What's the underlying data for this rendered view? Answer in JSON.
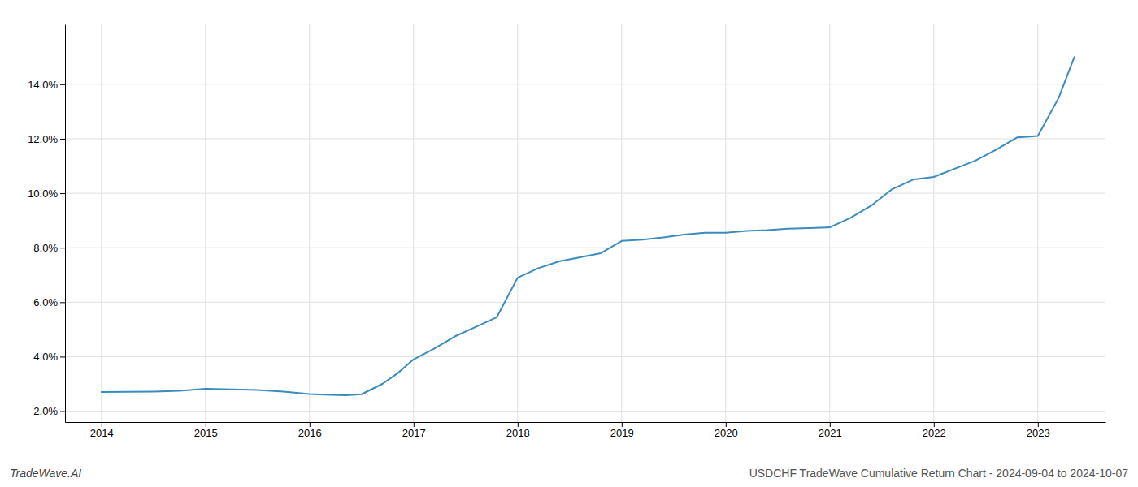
{
  "chart_data": {
    "type": "line",
    "title": "USDCHF TradeWave Cumulative Return Chart - 2024-09-04 to 2024-10-07",
    "annotations": [
      "TradeWave.AI"
    ],
    "color": "#3a8cbf",
    "x": [
      2014.0,
      2014.25,
      2014.5,
      2014.75,
      2015.0,
      2015.25,
      2015.5,
      2015.75,
      2016.0,
      2016.2,
      2016.35,
      2016.5,
      2016.7,
      2016.85,
      2017.0,
      2017.2,
      2017.4,
      2017.6,
      2017.8,
      2018.0,
      2018.2,
      2018.4,
      2018.6,
      2018.8,
      2019.0,
      2019.2,
      2019.4,
      2019.6,
      2019.8,
      2020.0,
      2020.2,
      2020.4,
      2020.6,
      2020.8,
      2021.0,
      2021.2,
      2021.4,
      2021.6,
      2021.8,
      2022.0,
      2022.2,
      2022.4,
      2022.6,
      2022.8,
      2023.0,
      2023.2,
      2023.35
    ],
    "values": [
      2.7,
      2.71,
      2.72,
      2.75,
      2.82,
      2.8,
      2.78,
      2.72,
      2.63,
      2.6,
      2.58,
      2.62,
      3.0,
      3.4,
      3.9,
      4.3,
      4.75,
      5.1,
      5.45,
      6.9,
      7.25,
      7.5,
      7.65,
      7.8,
      8.25,
      8.3,
      8.38,
      8.48,
      8.55,
      8.55,
      8.62,
      8.65,
      8.7,
      8.72,
      8.75,
      9.1,
      9.55,
      10.15,
      10.5,
      10.6,
      10.9,
      11.2,
      11.6,
      12.05,
      12.1,
      13.5,
      15.0
    ],
    "xlim": [
      2013.65,
      2023.65
    ],
    "ylim": [
      1.6,
      16.2
    ],
    "xticks": [
      2014,
      2015,
      2016,
      2017,
      2018,
      2019,
      2020,
      2021,
      2022,
      2023
    ],
    "yticks": [
      {
        "value": 2.0,
        "label": "2.0%"
      },
      {
        "value": 4.0,
        "label": "4.0%"
      },
      {
        "value": 6.0,
        "label": "6.0%"
      },
      {
        "value": 8.0,
        "label": "8.0%"
      },
      {
        "value": 10.0,
        "label": "10.0%"
      },
      {
        "value": 12.0,
        "label": "12.0%"
      },
      {
        "value": 14.0,
        "label": "14.0%"
      }
    ],
    "grid": true
  }
}
